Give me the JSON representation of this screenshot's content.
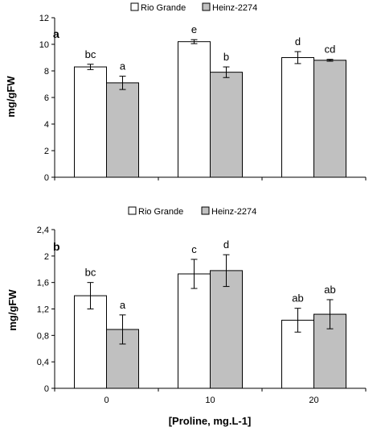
{
  "chart_data": [
    {
      "type": "bar",
      "panel_label": "a",
      "ylabel": "mg/gFW",
      "ylim": [
        0,
        12
      ],
      "y_ticks": [
        "0",
        "2",
        "4",
        "6",
        "8",
        "10",
        "12"
      ],
      "y_tick_values": [
        0,
        2,
        4,
        6,
        8,
        10,
        12
      ],
      "categories": [
        "0",
        "10",
        "20"
      ],
      "show_x_tick_labels": false,
      "grid": false,
      "legend_position": "top-center",
      "series": [
        {
          "name": "Rio Grande",
          "color": "#ffffff",
          "values": [
            8.3,
            10.2,
            9.0
          ],
          "errors": [
            0.2,
            0.15,
            0.45
          ],
          "letters": [
            "bc",
            "e",
            "d"
          ]
        },
        {
          "name": "Heinz-2274",
          "color": "#c0c0c0",
          "values": [
            7.1,
            7.9,
            8.8
          ],
          "errors": [
            0.5,
            0.4,
            0.07
          ],
          "letters": [
            "a",
            "b",
            "cd"
          ]
        }
      ]
    },
    {
      "type": "bar",
      "panel_label": "b",
      "ylabel": "mg/gFW",
      "xlabel": "[Proline, mg.L-1]",
      "ylim": [
        0,
        2.4
      ],
      "y_ticks": [
        "0",
        "0,4",
        "0,8",
        "1,2",
        "1,6",
        "2",
        "2,4"
      ],
      "y_tick_values": [
        0,
        0.4,
        0.8,
        1.2,
        1.6,
        2.0,
        2.4
      ],
      "categories": [
        "0",
        "10",
        "20"
      ],
      "show_x_tick_labels": true,
      "grid": false,
      "legend_position": "top-center",
      "series": [
        {
          "name": "Rio Grande",
          "color": "#ffffff",
          "values": [
            1.4,
            1.73,
            1.03
          ],
          "errors": [
            0.2,
            0.22,
            0.18
          ],
          "letters": [
            "bc",
            "c",
            "ab"
          ]
        },
        {
          "name": "Heinz-2274",
          "color": "#c0c0c0",
          "values": [
            0.89,
            1.78,
            1.12
          ],
          "errors": [
            0.22,
            0.24,
            0.22
          ],
          "letters": [
            "a",
            "d",
            "ab"
          ]
        }
      ]
    }
  ]
}
